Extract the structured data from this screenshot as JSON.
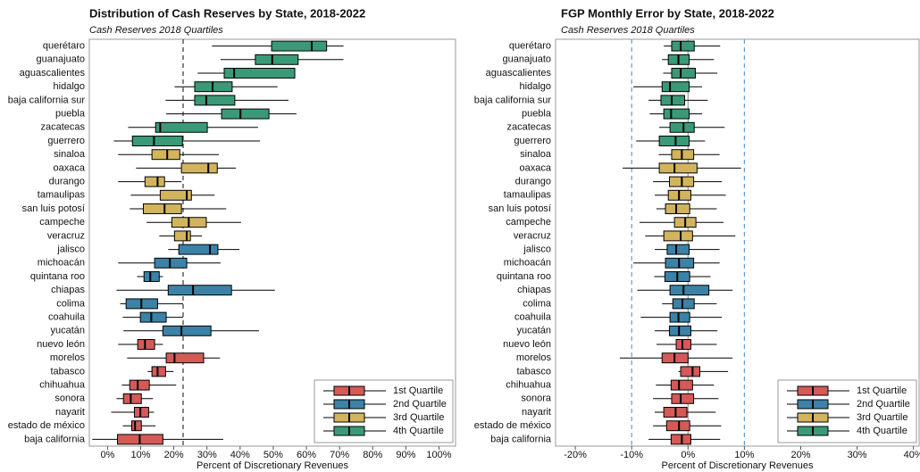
{
  "chart_data": [
    {
      "type": "box",
      "title": "Distribution of Cash Reserves by State, 2018-2022",
      "subtitle": "Cash Reserves 2018 Quartiles",
      "xlabel": "Percent of Discretionary Revenues",
      "xlim": [
        -5.5,
        105
      ],
      "xticks": [
        {
          "value": 0,
          "label": "0%"
        },
        {
          "value": 10,
          "label": "10%"
        },
        {
          "value": 20,
          "label": "20%"
        },
        {
          "value": 30,
          "label": "30%"
        },
        {
          "value": 40,
          "label": "40%"
        },
        {
          "value": 50,
          "label": "50%"
        },
        {
          "value": 60,
          "label": "60%"
        },
        {
          "value": 70,
          "label": "70%"
        },
        {
          "value": 80,
          "label": "80%"
        },
        {
          "value": 90,
          "label": "90%"
        },
        {
          "value": 100,
          "label": "100%"
        }
      ],
      "vlines": [
        {
          "value": 22.8,
          "color": "#333333",
          "dashed": true
        }
      ],
      "legend": "lower right",
      "categories": [
        "querétaro",
        "guanajuato",
        "aguascalientes",
        "hidalgo",
        "baja california sur",
        "puebla",
        "zacatecas",
        "guerrero",
        "sinaloa",
        "oaxaca",
        "durango",
        "tamaulipas",
        "san luis potosí",
        "campeche",
        "veracruz",
        "jalisco",
        "michoacán",
        "quintana roo",
        "chiapas",
        "colima",
        "coahuila",
        "yucatán",
        "nuevo león",
        "morelos",
        "tabasco",
        "chihuahua",
        "sonora",
        "nayarit",
        "estado de méxico",
        "baja california"
      ],
      "series": [
        {
          "name": "1st Quartile",
          "color": "#d45a58",
          "values": [
            null,
            null,
            null,
            null,
            null,
            null,
            null,
            null,
            null,
            null,
            null,
            null,
            null,
            null,
            null,
            null,
            null,
            null,
            null,
            null,
            null,
            null,
            [
              3.2,
              9.1,
              11.3,
              14.2,
              16.7
            ],
            [
              5.9,
              17.7,
              20.2,
              29.0,
              33.9
            ],
            [
              12.1,
              13.4,
              15.1,
              17.5,
              19.9
            ],
            [
              4.3,
              6.7,
              9.1,
              12.6,
              20.7
            ],
            [
              2.7,
              4.8,
              7.0,
              10.2,
              13.7
            ],
            [
              1.1,
              8.1,
              9.9,
              12.4,
              14.0
            ],
            [
              4.6,
              7.3,
              8.3,
              10.2,
              14.5
            ],
            [
              -4.6,
              3.0,
              9.7,
              16.7,
              34.9
            ]
          ]
        },
        {
          "name": "2nd Quartile",
          "color": "#3b82a6",
          "values": [
            null,
            null,
            null,
            null,
            null,
            null,
            null,
            null,
            null,
            null,
            null,
            null,
            null,
            null,
            null,
            [
              18.3,
              21.5,
              30.9,
              33.3,
              39.8
            ],
            [
              3.2,
              14.2,
              18.8,
              23.9,
              34.1
            ],
            [
              8.9,
              11.0,
              12.9,
              15.6,
              16.7
            ],
            [
              2.7,
              18.3,
              25.8,
              37.4,
              50.5
            ],
            [
              3.8,
              5.6,
              10.2,
              15.1,
              22.8
            ],
            [
              4.6,
              9.9,
              13.2,
              17.7,
              22.8
            ],
            [
              4.8,
              16.7,
              22.3,
              31.2,
              45.7
            ],
            null,
            null,
            null,
            null,
            null,
            null,
            null,
            null
          ]
        },
        {
          "name": "3rd Quartile",
          "color": "#d3b45e",
          "values": [
            null,
            null,
            null,
            null,
            null,
            null,
            null,
            null,
            [
              3.2,
              13.4,
              18.0,
              21.8,
              33.6
            ],
            [
              8.6,
              22.3,
              30.4,
              33.1,
              38.7
            ],
            [
              3.2,
              11.3,
              15.1,
              17.2,
              22.3
            ],
            [
              7.0,
              15.9,
              23.9,
              25.3,
              32.3
            ],
            [
              6.7,
              10.8,
              17.2,
              22.3,
              35.8
            ],
            [
              11.8,
              19.4,
              24.5,
              29.8,
              40.3
            ],
            [
              15.6,
              20.2,
              23.9,
              25.0,
              28.5
            ],
            null,
            null,
            null,
            null,
            null,
            null,
            null,
            null,
            null,
            null,
            null,
            null,
            null,
            null,
            null
          ]
        },
        {
          "name": "4th Quartile",
          "color": "#3a9a78",
          "values": [
            [
              31.5,
              49.5,
              61.6,
              66.1,
              71.2
            ],
            [
              34.1,
              44.6,
              49.7,
              57.5,
              71.2
            ],
            [
              27.2,
              35.2,
              38.2,
              56.5,
              56.5
            ],
            [
              20.2,
              26.3,
              31.7,
              37.6,
              51.3
            ],
            [
              17.5,
              26.3,
              29.8,
              38.4,
              54.6
            ],
            [
              17.7,
              34.4,
              40.1,
              48.7,
              57.0
            ],
            [
              6.2,
              14.5,
              15.9,
              30.1,
              45.4
            ],
            [
              1.9,
              7.5,
              14.0,
              22.6,
              46.0
            ],
            null,
            null,
            null,
            null,
            null,
            null,
            null,
            null,
            null,
            null,
            null,
            null,
            null,
            null,
            null,
            null,
            null,
            null,
            null,
            null,
            null,
            null
          ]
        }
      ]
    },
    {
      "type": "box",
      "title": "FGP Monthly Error by State, 2018-2022",
      "subtitle": "Cash Reserves 2018 Quartiles",
      "xlabel": "Percent of Discretionary Revenues",
      "xlim": [
        -23.5,
        41
      ],
      "xticks": [
        {
          "value": -20,
          "label": "-20%"
        },
        {
          "value": -10,
          "label": "-10%"
        },
        {
          "value": 0,
          "label": "0%"
        },
        {
          "value": 10,
          "label": "10%"
        },
        {
          "value": 20,
          "label": "20%"
        },
        {
          "value": 30,
          "label": "30%"
        },
        {
          "value": 40,
          "label": "40%"
        }
      ],
      "vlines": [
        {
          "value": -10,
          "color": "#5a9fd6",
          "dashed": true
        },
        {
          "value": 10,
          "color": "#5a9fd6",
          "dashed": true
        },
        {
          "value": 0,
          "color": "#999999",
          "dashed": false
        }
      ],
      "legend": "lower right",
      "categories": [
        "querétaro",
        "guanajuato",
        "aguascalientes",
        "hidalgo",
        "baja california sur",
        "puebla",
        "zacatecas",
        "guerrero",
        "sinaloa",
        "oaxaca",
        "durango",
        "tamaulipas",
        "san luis potosí",
        "campeche",
        "veracruz",
        "jalisco",
        "michoacán",
        "quintana roo",
        "chiapas",
        "colima",
        "coahuila",
        "yucatán",
        "nuevo león",
        "morelos",
        "tabasco",
        "chihuahua",
        "sonora",
        "nayarit",
        "estado de méxico",
        "baja california"
      ],
      "series": [
        {
          "name": "1st Quartile",
          "color": "#d45a58",
          "values": [
            null,
            null,
            null,
            null,
            null,
            null,
            null,
            null,
            null,
            null,
            null,
            null,
            null,
            null,
            null,
            null,
            null,
            null,
            null,
            null,
            null,
            null,
            [
              -5.6,
              -2.1,
              -1.0,
              0.5,
              5.1
            ],
            [
              -12.1,
              -4.6,
              -2.4,
              0.0,
              7.9
            ],
            [
              -1.7,
              -1.3,
              0.8,
              2.1,
              7.1
            ],
            [
              -5.7,
              -3.0,
              -1.6,
              0.8,
              4.6
            ],
            [
              -6.2,
              -2.9,
              -1.3,
              1.0,
              5.4
            ],
            [
              -5.9,
              -4.3,
              -2.2,
              -0.2,
              4.9
            ],
            [
              -6.2,
              -3.8,
              -1.6,
              0.3,
              5.9
            ],
            [
              -7.0,
              -3.0,
              -1.1,
              0.5,
              5.7
            ]
          ]
        },
        {
          "name": "2nd Quartile",
          "color": "#3b82a6",
          "values": [
            null,
            null,
            null,
            null,
            null,
            null,
            null,
            null,
            null,
            null,
            null,
            null,
            null,
            null,
            null,
            [
              -5.9,
              -3.7,
              -2.1,
              0.2,
              5.6
            ],
            [
              -9.7,
              -4.0,
              -1.6,
              1.0,
              5.6
            ],
            [
              -6.0,
              -4.1,
              -1.9,
              0.3,
              4.0
            ],
            [
              -9.0,
              -3.2,
              -0.8,
              3.7,
              7.9
            ],
            [
              -4.6,
              -2.7,
              -1.0,
              1.1,
              5.1
            ],
            [
              -8.4,
              -3.2,
              -1.7,
              0.3,
              6.0
            ],
            [
              -5.9,
              -3.3,
              -1.6,
              0.5,
              5.2
            ],
            null,
            null,
            null,
            null,
            null,
            null,
            null,
            null
          ]
        },
        {
          "name": "3rd Quartile",
          "color": "#d3b45e",
          "values": [
            null,
            null,
            null,
            null,
            null,
            null,
            null,
            null,
            [
              -5.2,
              -2.9,
              -1.1,
              1.0,
              5.6
            ],
            [
              -11.6,
              -5.1,
              -2.4,
              1.6,
              9.4
            ],
            [
              -6.2,
              -3.3,
              -1.1,
              1.0,
              6.0
            ],
            [
              -5.9,
              -3.5,
              -1.6,
              0.5,
              6.7
            ],
            [
              -5.6,
              -4.0,
              -2.1,
              0.3,
              5.1
            ],
            [
              -8.6,
              -2.4,
              -0.5,
              1.4,
              6.3
            ],
            [
              -7.6,
              -4.3,
              -1.3,
              0.8,
              8.4
            ],
            null,
            null,
            null,
            null,
            null,
            null,
            null,
            null,
            null,
            null,
            null,
            null,
            null,
            null,
            null
          ]
        },
        {
          "name": "4th Quartile",
          "color": "#3a9a78",
          "values": [
            [
              -4.3,
              -2.9,
              -1.3,
              1.1,
              5.7
            ],
            [
              -4.6,
              -3.5,
              -1.7,
              0.2,
              4.6
            ],
            [
              -4.4,
              -2.9,
              -1.3,
              1.3,
              5.2
            ],
            [
              -9.7,
              -4.6,
              -3.2,
              0.2,
              2.5
            ],
            [
              -7.0,
              -4.8,
              -2.9,
              -0.6,
              3.5
            ],
            [
              -6.8,
              -4.3,
              -3.0,
              0.2,
              2.5
            ],
            [
              -5.1,
              -3.2,
              -0.8,
              1.1,
              6.5
            ],
            [
              -9.2,
              -5.1,
              -2.2,
              0.2,
              3.0
            ],
            null,
            null,
            null,
            null,
            null,
            null,
            null,
            null,
            null,
            null,
            null,
            null,
            null,
            null,
            null,
            null,
            null,
            null,
            null,
            null,
            null,
            null
          ]
        }
      ]
    }
  ]
}
